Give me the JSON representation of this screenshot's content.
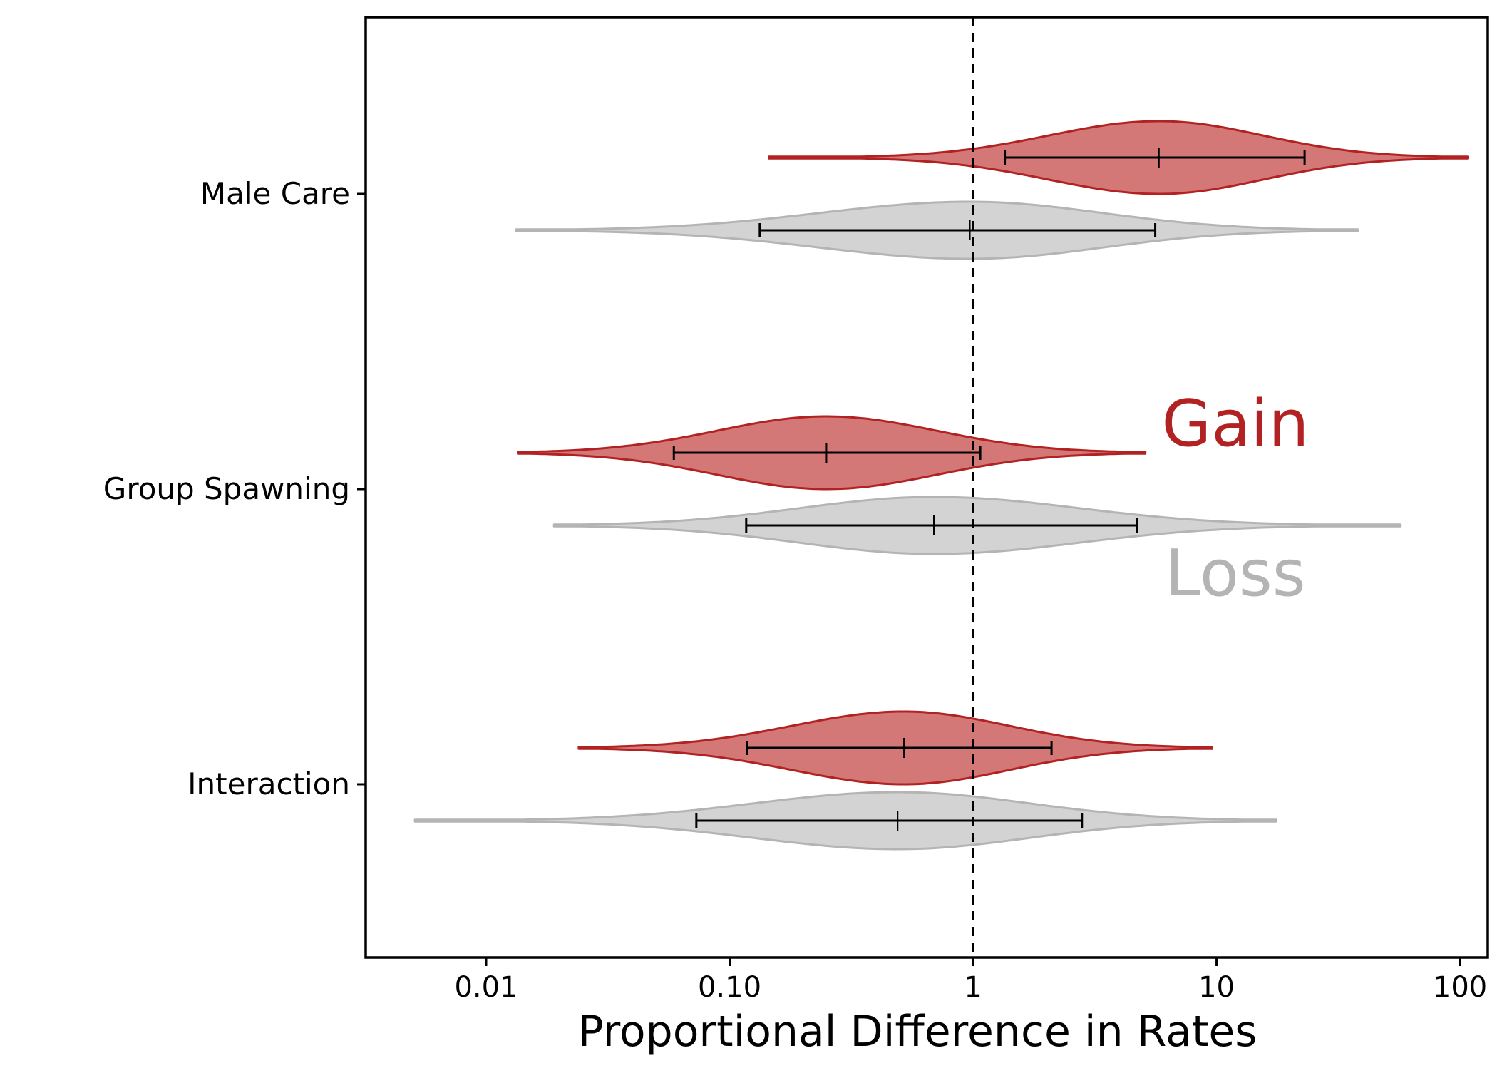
{
  "chart_data": {
    "type": "violin",
    "xlabel": "Proportional Difference in Rates",
    "ylabel": "",
    "title": "",
    "x_scale": "log",
    "xlim": [
      0.0032,
      130
    ],
    "x_ticks": [
      {
        "value": 0.01,
        "label": "0.01"
      },
      {
        "value": 0.1,
        "label": "0.10"
      },
      {
        "value": 1,
        "label": "1"
      },
      {
        "value": 10,
        "label": "10"
      },
      {
        "value": 100,
        "label": "100"
      }
    ],
    "reference_line": {
      "x": 1,
      "style": "dashed"
    },
    "categories": [
      "Male Care",
      "Group Spawning",
      "Interaction"
    ],
    "series": [
      {
        "name": "Gain",
        "color": "#b22222",
        "fill": "#d37777",
        "groups": [
          {
            "category": "Male Care",
            "min": 0.145,
            "max": 108,
            "ci_low": 1.35,
            "ci_high": 23,
            "median": 5.8
          },
          {
            "category": "Group Spawning",
            "min": 0.0135,
            "max": 5.1,
            "ci_low": 0.059,
            "ci_high": 1.07,
            "median": 0.25
          },
          {
            "category": "Interaction",
            "min": 0.024,
            "max": 9.6,
            "ci_low": 0.118,
            "ci_high": 2.1,
            "median": 0.52
          }
        ]
      },
      {
        "name": "Loss",
        "color": "#b4b4b4",
        "fill": "#d3d3d3",
        "groups": [
          {
            "category": "Male Care",
            "min": 0.0133,
            "max": 38,
            "ci_low": 0.133,
            "ci_high": 5.6,
            "median": 0.97
          },
          {
            "category": "Group Spawning",
            "min": 0.019,
            "max": 57,
            "ci_low": 0.117,
            "ci_high": 4.7,
            "median": 0.69
          },
          {
            "category": "Interaction",
            "min": 0.0051,
            "max": 17.6,
            "ci_low": 0.073,
            "ci_high": 2.8,
            "median": 0.49
          }
        ]
      }
    ],
    "legend": {
      "placement": "right-center",
      "style": "text-labels",
      "entries": [
        "Gain",
        "Loss"
      ]
    },
    "grid": false
  }
}
